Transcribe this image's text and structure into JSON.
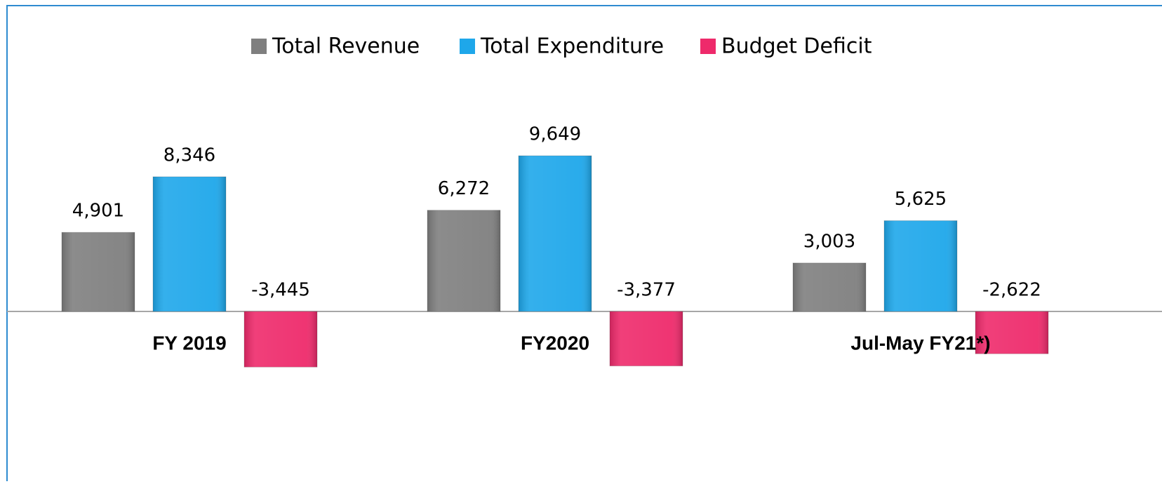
{
  "chart_data": {
    "type": "bar",
    "categories": [
      "FY 2019",
      "FY2020",
      "Jul-May FY21*)"
    ],
    "series": [
      {
        "name": "Total Revenue",
        "color": "#7f7f7f",
        "values": [
          4901,
          6272,
          3003
        ],
        "value_labels": [
          "4,901",
          "6,272",
          "3,003"
        ]
      },
      {
        "name": "Total Expenditure",
        "color": "#1ea7ea",
        "values": [
          8346,
          9649,
          5625
        ],
        "value_labels": [
          "8,346",
          "9,649",
          "5,625"
        ]
      },
      {
        "name": "Budget Deficit",
        "color": "#ee2a6b",
        "values": [
          -3445,
          -3377,
          -2622
        ],
        "value_labels": [
          "-3,445",
          "-3,377",
          "-2,622"
        ]
      }
    ],
    "legend": "top"
  }
}
